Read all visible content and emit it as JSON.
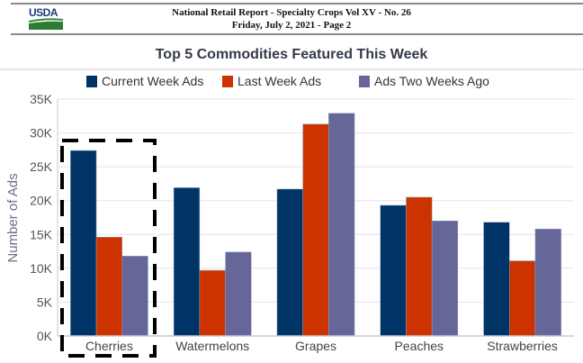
{
  "header": {
    "logo_text": "USDA",
    "report_title": "National Retail Report - Specialty Crops Vol  XV - No. 26",
    "report_date": "Friday, July 2, 2021  - Page 2"
  },
  "colors": {
    "current": "#003366",
    "last": "#cc3300",
    "two_weeks": "#666699",
    "highlight_box": "#000000"
  },
  "chart_data": {
    "type": "bar",
    "title": "Top 5 Commodities Featured This Week",
    "xlabel": "",
    "ylabel": "Number of Ads",
    "ylim": [
      0,
      35000
    ],
    "yticks": [
      0,
      5000,
      10000,
      15000,
      20000,
      25000,
      30000,
      35000
    ],
    "ytick_labels": [
      "0K",
      "5K",
      "10K",
      "15K",
      "20K",
      "25K",
      "30K",
      "35K"
    ],
    "grid": true,
    "legend_position": "top",
    "categories": [
      "Cherries",
      "Watermelons",
      "Grapes",
      "Peaches",
      "Strawberries"
    ],
    "series": [
      {
        "name": "Current Week Ads",
        "color_key": "current",
        "values": [
          27400,
          21900,
          21700,
          19300,
          16800
        ]
      },
      {
        "name": "Last Week Ads",
        "color_key": "last",
        "values": [
          14600,
          9700,
          31300,
          20500,
          11100
        ]
      },
      {
        "name": "Ads Two Weeks Ago",
        "color_key": "two_weeks",
        "values": [
          11800,
          12400,
          32900,
          17000,
          15800
        ]
      }
    ],
    "annotations": [
      {
        "type": "dashed-highlight-box",
        "category": "Cherries"
      }
    ]
  }
}
